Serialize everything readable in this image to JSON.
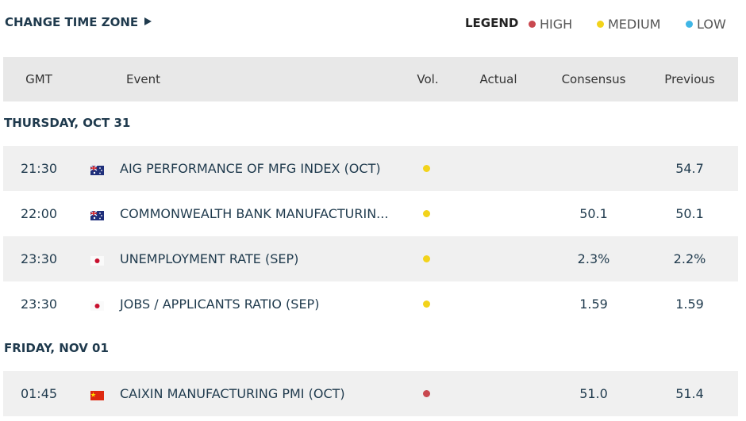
{
  "header": {
    "change_time_zone": "CHANGE TIME ZONE",
    "legend_title": "LEGEND",
    "legend": [
      {
        "label": "HIGH",
        "color": "#c9484f"
      },
      {
        "label": "MEDIUM",
        "color": "#f2d31b"
      },
      {
        "label": "LOW",
        "color": "#3fb6e6"
      }
    ]
  },
  "table": {
    "columns": [
      "GMT",
      "Event",
      "Vol.",
      "Actual",
      "Consensus",
      "Previous"
    ],
    "days": [
      {
        "label": "THURSDAY, OCT 31",
        "rows": [
          {
            "time": "21:30",
            "flag": "au",
            "event": "AIG PERFORMANCE OF MFG INDEX (OCT)",
            "vol_color": "#f2d31b",
            "consensus": null,
            "previous": "54.7"
          },
          {
            "time": "22:00",
            "flag": "au",
            "event": "COMMONWEALTH BANK MANUFACTURIN...",
            "vol_color": "#f2d31b",
            "consensus": "50.1",
            "previous": "50.1"
          },
          {
            "time": "23:30",
            "flag": "jp",
            "event": "UNEMPLOYMENT RATE (SEP)",
            "vol_color": "#f2d31b",
            "consensus": "2.3%",
            "previous": "2.2%"
          },
          {
            "time": "23:30",
            "flag": "jp",
            "event": "JOBS / APPLICANTS RATIO (SEP)",
            "vol_color": "#f2d31b",
            "consensus": "1.59",
            "previous": "1.59"
          }
        ]
      },
      {
        "label": "FRIDAY, NOV 01",
        "rows": [
          {
            "time": "01:45",
            "flag": "cn",
            "event": "CAIXIN MANUFACTURING PMI (OCT)",
            "vol_color": "#c9484f",
            "consensus": "51.0",
            "previous": "51.4"
          }
        ]
      }
    ]
  }
}
